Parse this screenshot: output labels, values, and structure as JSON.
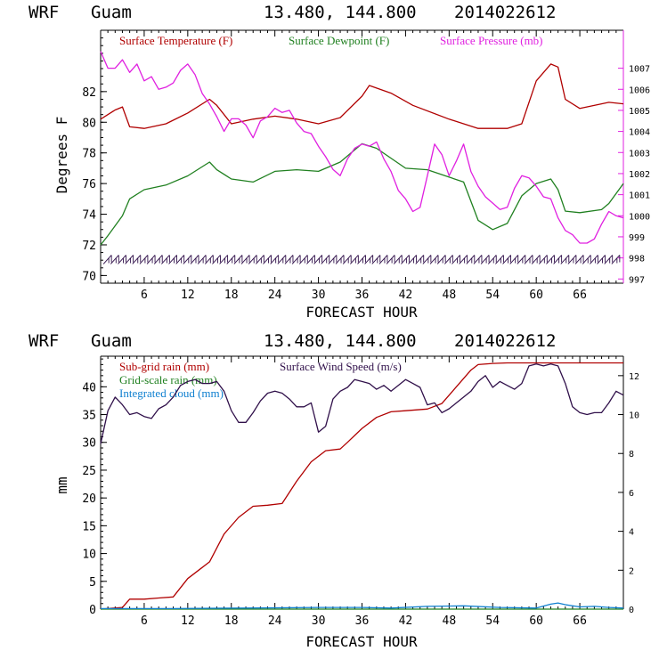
{
  "colors": {
    "temperature": "#b00000",
    "dewpoint": "#208020",
    "pressure": "#e020e0",
    "subgrid_rain": "#b00000",
    "gridscale_rain": "#208020",
    "cloud": "#1080d0",
    "wind": "#30104a",
    "barbs": "#30104a"
  },
  "chart_data": [
    {
      "type": "line",
      "header": {
        "model": "WRF",
        "location": "Guam",
        "coords": "13.480, 144.800",
        "run": "2014022612"
      },
      "xlabel": "FORECAST HOUR",
      "ylabel": "Degrees F",
      "xlim": [
        0,
        72
      ],
      "xticks": [
        "6",
        "12",
        "18",
        "24",
        "30",
        "36",
        "42",
        "48",
        "54",
        "60",
        "66"
      ],
      "ylim": [
        69.5,
        86
      ],
      "yticks": [
        "70",
        "72",
        "74",
        "76",
        "78",
        "80",
        "82"
      ],
      "y2lim": [
        996.8,
        1008.8
      ],
      "y2ticks": [
        "997",
        "998",
        "999",
        "1000",
        "1001",
        "1002",
        "1003",
        "1004",
        "1005",
        "1006",
        "1007"
      ],
      "legend": [
        "Surface Temperature (F)",
        "Surface Dewpoint (F)",
        "Surface Pressure (mb)"
      ],
      "series": [
        {
          "name": "Surface Temperature (F)",
          "axis": "left",
          "x": [
            0,
            2,
            3,
            4,
            6,
            9,
            12,
            15,
            16,
            18,
            21,
            24,
            27,
            30,
            33,
            36,
            37,
            40,
            43,
            48,
            52,
            54,
            56,
            58,
            60,
            62,
            63,
            64,
            66,
            69,
            70,
            72
          ],
          "values": [
            80.2,
            80.8,
            81.0,
            79.7,
            79.6,
            79.9,
            80.6,
            81.5,
            81.1,
            79.9,
            80.2,
            80.4,
            80.2,
            79.9,
            80.3,
            81.7,
            82.4,
            81.9,
            81.1,
            80.2,
            79.6,
            79.6,
            79.6,
            79.9,
            82.7,
            83.8,
            83.6,
            81.5,
            80.9,
            81.2,
            81.3,
            81.2
          ]
        },
        {
          "name": "Surface Dewpoint (F)",
          "axis": "left",
          "x": [
            0,
            1,
            3,
            4,
            6,
            9,
            12,
            15,
            16,
            18,
            21,
            24,
            27,
            30,
            33,
            36,
            38,
            42,
            45,
            50,
            52,
            54,
            56,
            58,
            60,
            62,
            63,
            64,
            66,
            69,
            70,
            72
          ],
          "values": [
            72.0,
            72.6,
            73.9,
            75.0,
            75.6,
            75.9,
            76.5,
            77.4,
            76.9,
            76.3,
            76.1,
            76.8,
            76.9,
            76.8,
            77.4,
            78.6,
            78.3,
            77.0,
            76.9,
            76.1,
            73.6,
            73.0,
            73.4,
            75.2,
            76.0,
            76.3,
            75.6,
            74.2,
            74.1,
            74.3,
            74.7,
            76.0
          ]
        },
        {
          "name": "Surface Pressure (mb)",
          "axis": "right",
          "x": [
            0,
            1,
            2,
            3,
            4,
            5,
            6,
            7,
            8,
            9,
            10,
            11,
            12,
            13,
            14,
            15,
            16,
            17,
            18,
            19,
            20,
            21,
            22,
            23,
            24,
            25,
            26,
            27,
            28,
            29,
            30,
            31,
            32,
            33,
            34,
            35,
            36,
            37,
            38,
            39,
            40,
            41,
            42,
            43,
            44,
            45,
            46,
            47,
            48,
            49,
            50,
            51,
            52,
            53,
            54,
            55,
            56,
            57,
            58,
            59,
            60,
            61,
            62,
            63,
            64,
            65,
            66,
            67,
            68,
            69,
            70,
            71,
            72
          ],
          "values": [
            1007.8,
            1007.0,
            1007.0,
            1007.4,
            1006.8,
            1007.2,
            1006.4,
            1006.6,
            1006.0,
            1006.1,
            1006.3,
            1006.9,
            1007.2,
            1006.7,
            1005.8,
            1005.3,
            1004.7,
            1004.0,
            1004.6,
            1004.6,
            1004.3,
            1003.7,
            1004.5,
            1004.7,
            1005.1,
            1004.9,
            1005.0,
            1004.4,
            1004.0,
            1003.9,
            1003.3,
            1002.8,
            1002.2,
            1001.9,
            1002.7,
            1003.2,
            1003.4,
            1003.3,
            1003.5,
            1002.7,
            1002.1,
            1001.2,
            1000.8,
            1000.2,
            1000.4,
            1001.9,
            1003.4,
            1002.9,
            1001.9,
            1002.6,
            1003.4,
            1002.1,
            1001.4,
            1000.9,
            1000.6,
            1000.3,
            1000.4,
            1001.3,
            1001.9,
            1001.8,
            1001.4,
            1000.9,
            1000.8,
            999.9,
            999.3,
            999.1,
            998.7,
            998.7,
            998.9,
            999.6,
            1000.2,
            1000.0,
            999.9
          ]
        }
      ],
      "wind_barbs": "row of wind barbs along the bottom of the upper panel"
    },
    {
      "type": "line",
      "header": {
        "model": "WRF",
        "location": "Guam",
        "coords": "13.480, 144.800",
        "run": "2014022612"
      },
      "xlabel": "FORECAST HOUR",
      "ylabel": "mm",
      "xlim": [
        0,
        72
      ],
      "xticks": [
        "6",
        "12",
        "18",
        "24",
        "30",
        "36",
        "42",
        "48",
        "54",
        "60",
        "66"
      ],
      "ylim": [
        0,
        45.5
      ],
      "yticks": [
        "0",
        "5",
        "10",
        "15",
        "20",
        "25",
        "30",
        "35",
        "40"
      ],
      "y2lim": [
        0,
        13.0
      ],
      "y2ticks": [
        "0",
        "2",
        "4",
        "6",
        "8",
        "10",
        "12"
      ],
      "legend": [
        "Sub-grid rain (mm)",
        "Grid-scale rain (mm)",
        "Integrated cloud (mm)",
        "Surface Wind Speed (m/s)"
      ],
      "series": [
        {
          "name": "Sub-grid rain (mm)",
          "axis": "left",
          "x": [
            0,
            3,
            4,
            6,
            8,
            10,
            12,
            14,
            15,
            17,
            19,
            21,
            23,
            25,
            27,
            29,
            31,
            33,
            34,
            36,
            38,
            40,
            42,
            45,
            47,
            49,
            51,
            52,
            54,
            56,
            58,
            60,
            62,
            64,
            66,
            68,
            70,
            72
          ],
          "values": [
            0,
            0.3,
            1.8,
            1.8,
            2.0,
            2.2,
            5.5,
            7.5,
            8.5,
            13.5,
            16.5,
            18.5,
            18.7,
            19.0,
            23.0,
            26.5,
            28.5,
            28.8,
            30.0,
            32.5,
            34.5,
            35.5,
            35.7,
            36.0,
            37.0,
            40.0,
            43.0,
            44.0,
            44.2,
            44.3,
            44.3,
            44.3,
            44.3,
            44.3,
            44.3,
            44.3,
            44.3,
            44.3
          ]
        },
        {
          "name": "Grid-scale rain (mm)",
          "axis": "left",
          "x": [
            0,
            72
          ],
          "values": [
            0.0,
            0.0
          ]
        },
        {
          "name": "Integrated cloud (mm)",
          "axis": "left",
          "x": [
            0,
            10,
            20,
            30,
            36,
            40,
            45,
            50,
            55,
            60,
            62,
            63,
            64,
            66,
            68,
            70,
            72
          ],
          "values": [
            0.1,
            0.1,
            0.2,
            0.3,
            0.3,
            0.2,
            0.5,
            0.6,
            0.3,
            0.2,
            0.9,
            1.1,
            0.8,
            0.4,
            0.5,
            0.3,
            0.2
          ]
        },
        {
          "name": "Surface Wind Speed (m/s)",
          "axis": "right",
          "x": [
            0,
            1,
            2,
            3,
            4,
            5,
            6,
            7,
            8,
            9,
            10,
            11,
            12,
            13,
            14,
            15,
            16,
            17,
            18,
            19,
            20,
            21,
            22,
            23,
            24,
            25,
            26,
            27,
            28,
            29,
            30,
            31,
            32,
            33,
            34,
            35,
            36,
            37,
            38,
            39,
            40,
            41,
            42,
            43,
            44,
            45,
            46,
            47,
            48,
            49,
            50,
            51,
            52,
            53,
            54,
            55,
            56,
            57,
            58,
            59,
            60,
            61,
            62,
            63,
            64,
            65,
            66,
            67,
            68,
            69,
            70,
            71,
            72
          ],
          "values": [
            8.5,
            10.2,
            10.9,
            10.5,
            10.0,
            10.1,
            9.9,
            9.8,
            10.3,
            10.5,
            10.9,
            11.5,
            11.7,
            11.8,
            11.6,
            11.6,
            11.7,
            11.2,
            10.2,
            9.6,
            9.6,
            10.1,
            10.7,
            11.1,
            11.2,
            11.1,
            10.8,
            10.4,
            10.4,
            10.6,
            9.1,
            9.4,
            10.8,
            11.2,
            11.4,
            11.8,
            11.7,
            11.6,
            11.3,
            11.5,
            11.2,
            11.5,
            11.8,
            11.6,
            11.4,
            10.5,
            10.6,
            10.1,
            10.3,
            10.6,
            10.9,
            11.2,
            11.7,
            12.0,
            11.4,
            11.7,
            11.5,
            11.3,
            11.6,
            12.5,
            12.6,
            12.5,
            12.6,
            12.5,
            11.6,
            10.4,
            10.1,
            10.0,
            10.1,
            10.1,
            10.6,
            11.2,
            11.0
          ]
        }
      ]
    }
  ]
}
